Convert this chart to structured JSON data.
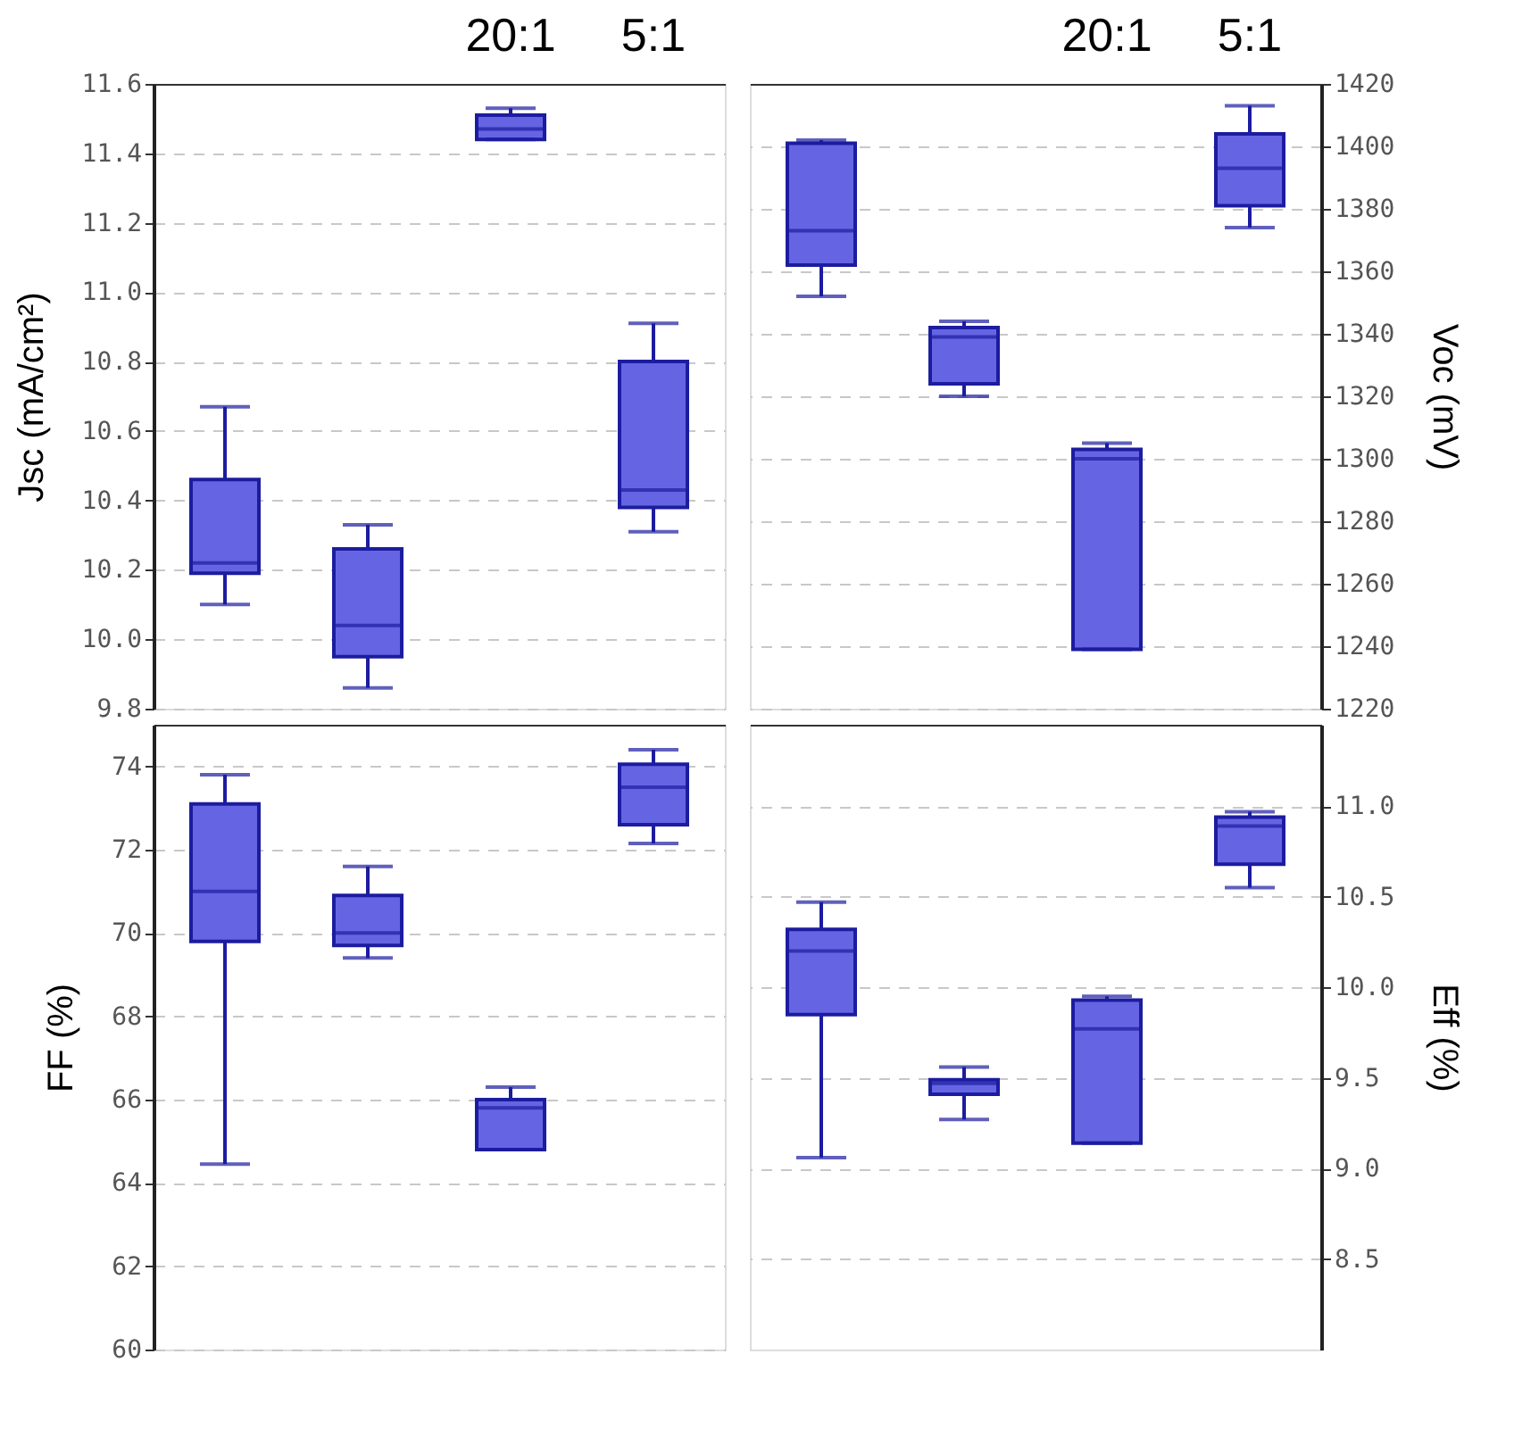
{
  "chart_data": [
    {
      "type": "box",
      "categories": [
        null,
        null,
        "20:1",
        "5:1"
      ],
      "ylabel": "Jsc (mA/cm²)",
      "ylim": [
        9.8,
        11.6
      ],
      "yticks": [
        9.8,
        {
          "value": 10,
          "label": "10.0"
        },
        10.2,
        10.4,
        10.6,
        10.8,
        {
          "value": 11,
          "label": "11.0"
        },
        11.2,
        11.4,
        11.6
      ],
      "grid": "y",
      "series": [
        {
          "color": "#6565e3",
          "boxes": [
            {
              "low": 10.1,
              "q1": 10.19,
              "median": 10.22,
              "q3": 10.46,
              "high": 10.67
            },
            {
              "low": 9.86,
              "q1": 9.95,
              "median": 10.04,
              "q3": 10.26,
              "high": 10.33
            },
            {
              "low": 11.44,
              "q1": 11.44,
              "median": 11.47,
              "q3": 11.51,
              "high": 11.53
            },
            {
              "low": 10.31,
              "q1": 10.38,
              "median": 10.43,
              "q3": 10.8,
              "high": 10.91
            }
          ]
        }
      ]
    },
    {
      "type": "box",
      "categories": [
        null,
        null,
        "20:1",
        "5:1"
      ],
      "ylabel": "Voc (mV)",
      "ylim": [
        1220,
        1420
      ],
      "yticks": [
        1220,
        1240,
        1260,
        1280,
        1300,
        1320,
        1340,
        1360,
        1380,
        1400,
        1420
      ],
      "grid": "y",
      "series": [
        {
          "color": "#6565e3",
          "boxes": [
            {
              "low": 1352,
              "q1": 1362,
              "median": 1373,
              "q3": 1401,
              "high": 1402
            },
            {
              "low": 1320,
              "q1": 1324,
              "median": 1339,
              "q3": 1342,
              "high": 1344
            },
            {
              "low": 1239,
              "q1": 1239,
              "median": 1300,
              "q3": 1303,
              "high": 1305
            },
            {
              "low": 1374,
              "q1": 1381,
              "median": 1393,
              "q3": 1404,
              "high": 1413
            }
          ]
        }
      ]
    },
    {
      "type": "box",
      "categories": [
        null,
        null,
        null,
        null
      ],
      "ylabel": "FF (%)",
      "ylim": [
        60,
        75
      ],
      "yticks": [
        60,
        62,
        64,
        66,
        68,
        70,
        72,
        74
      ],
      "grid": "y",
      "tick_labels": "y",
      "series": [
        {
          "color": "#6565e3",
          "boxes": [
            {
              "low": 64.45,
              "q1": 69.8,
              "median": 71.0,
              "q3": 73.1,
              "high": 73.8
            },
            {
              "low": 69.4,
              "q1": 69.7,
              "median": 70.0,
              "q3": 70.9,
              "high": 71.6
            },
            {
              "low": 64.8,
              "q1": 64.8,
              "median": 65.8,
              "q3": 66.0,
              "high": 66.3
            },
            {
              "low": 72.15,
              "q1": 72.6,
              "median": 73.5,
              "q3": 74.05,
              "high": 74.4
            }
          ]
        }
      ]
    },
    {
      "type": "box",
      "categories": [
        null,
        null,
        null,
        null
      ],
      "ylabel": "Eff (%)",
      "ylim": [
        8.0,
        11.45
      ],
      "yticks": [
        8.5,
        {
          "value": 9,
          "label": "9.0"
        },
        9.5,
        {
          "value": 10,
          "label": "10.0"
        },
        10.5,
        {
          "value": 11,
          "label": "11.0"
        }
      ],
      "grid": "y",
      "tick_labels": "y",
      "series": [
        {
          "color": "#6565e3",
          "boxes": [
            {
              "low": 9.06,
              "q1": 9.85,
              "median": 10.2,
              "q3": 10.32,
              "high": 10.47
            },
            {
              "low": 9.27,
              "q1": 9.41,
              "median": 9.47,
              "q3": 9.49,
              "high": 9.56
            },
            {
              "low": 9.14,
              "q1": 9.14,
              "median": 9.77,
              "q3": 9.93,
              "high": 9.95
            },
            {
              "low": 10.55,
              "q1": 10.68,
              "median": 10.89,
              "q3": 10.94,
              "high": 10.97
            }
          ]
        }
      ]
    }
  ]
}
